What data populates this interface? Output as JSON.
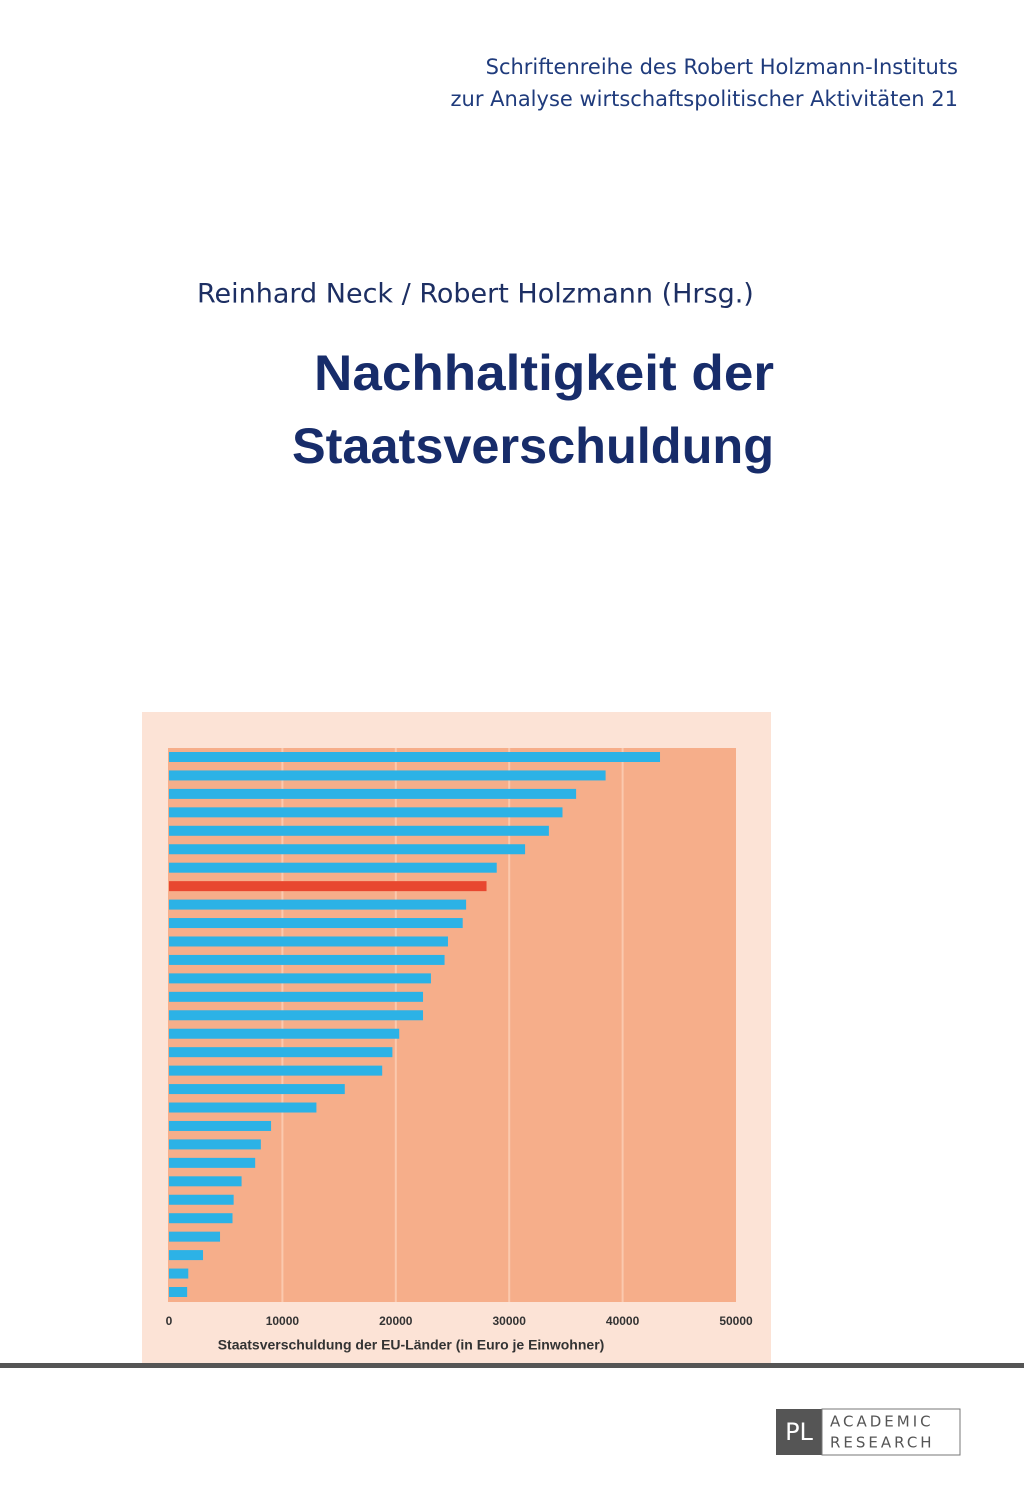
{
  "series_title": [
    "Schriftenreihe des Robert Holzmann-Instituts",
    "zur Analyse wirtschaftspolitischer Aktivitäten 21"
  ],
  "authors": "Reinhard Neck / Robert Holzmann (Hrsg.)",
  "title": [
    "Nachhaltigkeit der",
    "Staatsverschuldung"
  ],
  "chart_data": {
    "type": "bar",
    "orientation": "horizontal",
    "xlabel": "Staatsverschuldung der EU-Länder (in Euro je Einwohner)",
    "categories": [
      null,
      null,
      null,
      null,
      null,
      null,
      null,
      null,
      null,
      null,
      null,
      null,
      null,
      null,
      null,
      null,
      null,
      null,
      null,
      null,
      null,
      null,
      null,
      null,
      null,
      null,
      null,
      null,
      null,
      null
    ],
    "values": [
      43300,
      38500,
      35900,
      34700,
      33500,
      31400,
      28900,
      28000,
      26200,
      25900,
      24600,
      24300,
      23100,
      22400,
      22400,
      20300,
      19700,
      18800,
      15500,
      13000,
      9000,
      8100,
      7600,
      6400,
      5700,
      5600,
      4500,
      3000,
      1700,
      1600
    ],
    "colors": [
      "#2cb2e6",
      "#2cb2e6",
      "#2cb2e6",
      "#2cb2e6",
      "#2cb2e6",
      "#2cb2e6",
      "#2cb2e6",
      "#e8472f",
      "#2cb2e6",
      "#2cb2e6",
      "#2cb2e6",
      "#2cb2e6",
      "#2cb2e6",
      "#2cb2e6",
      "#2cb2e6",
      "#2cb2e6",
      "#2cb2e6",
      "#2cb2e6",
      "#2cb2e6",
      "#2cb2e6",
      "#2cb2e6",
      "#2cb2e6",
      "#2cb2e6",
      "#2cb2e6",
      "#2cb2e6",
      "#2cb2e6",
      "#2cb2e6",
      "#2cb2e6",
      "#2cb2e6",
      "#2cb2e6"
    ],
    "xlim": [
      0,
      50000
    ],
    "xticks": [
      0,
      10000,
      20000,
      30000,
      40000,
      50000
    ],
    "grid": true
  },
  "publisher": {
    "logo": "PL",
    "lines": [
      "ACADEMIC",
      "RESEARCH"
    ]
  }
}
